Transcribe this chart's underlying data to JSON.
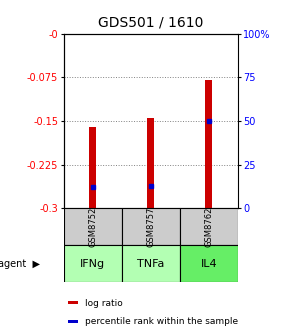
{
  "title": "GDS501 / 1610",
  "samples": [
    "GSM8752",
    "GSM8757",
    "GSM8762"
  ],
  "agents": [
    "IFNg",
    "TNFa",
    "IL4"
  ],
  "log_ratios": [
    -0.16,
    -0.145,
    -0.08
  ],
  "percentile_ranks_pct": [
    12,
    13,
    50
  ],
  "ylim_left": [
    -0.3,
    0.0
  ],
  "ylim_right": [
    0,
    100
  ],
  "yticks_left": [
    0.0,
    -0.075,
    -0.15,
    -0.225,
    -0.3
  ],
  "yticks_right": [
    100,
    75,
    50,
    25,
    0
  ],
  "ytick_labels_left": [
    "-0",
    "-0.075",
    "-0.15",
    "-0.225",
    "-0.3"
  ],
  "ytick_labels_right": [
    "100%",
    "75",
    "50",
    "25",
    "0"
  ],
  "bar_color": "#cc0000",
  "percentile_color": "#0000cc",
  "agent_colors": [
    "#b3ffb3",
    "#b3ffb3",
    "#66ee66"
  ],
  "sample_bg_color": "#cccccc",
  "bar_width": 0.12,
  "legend_items": [
    {
      "color": "#cc0000",
      "label": "log ratio"
    },
    {
      "color": "#0000cc",
      "label": "percentile rank within the sample"
    }
  ]
}
